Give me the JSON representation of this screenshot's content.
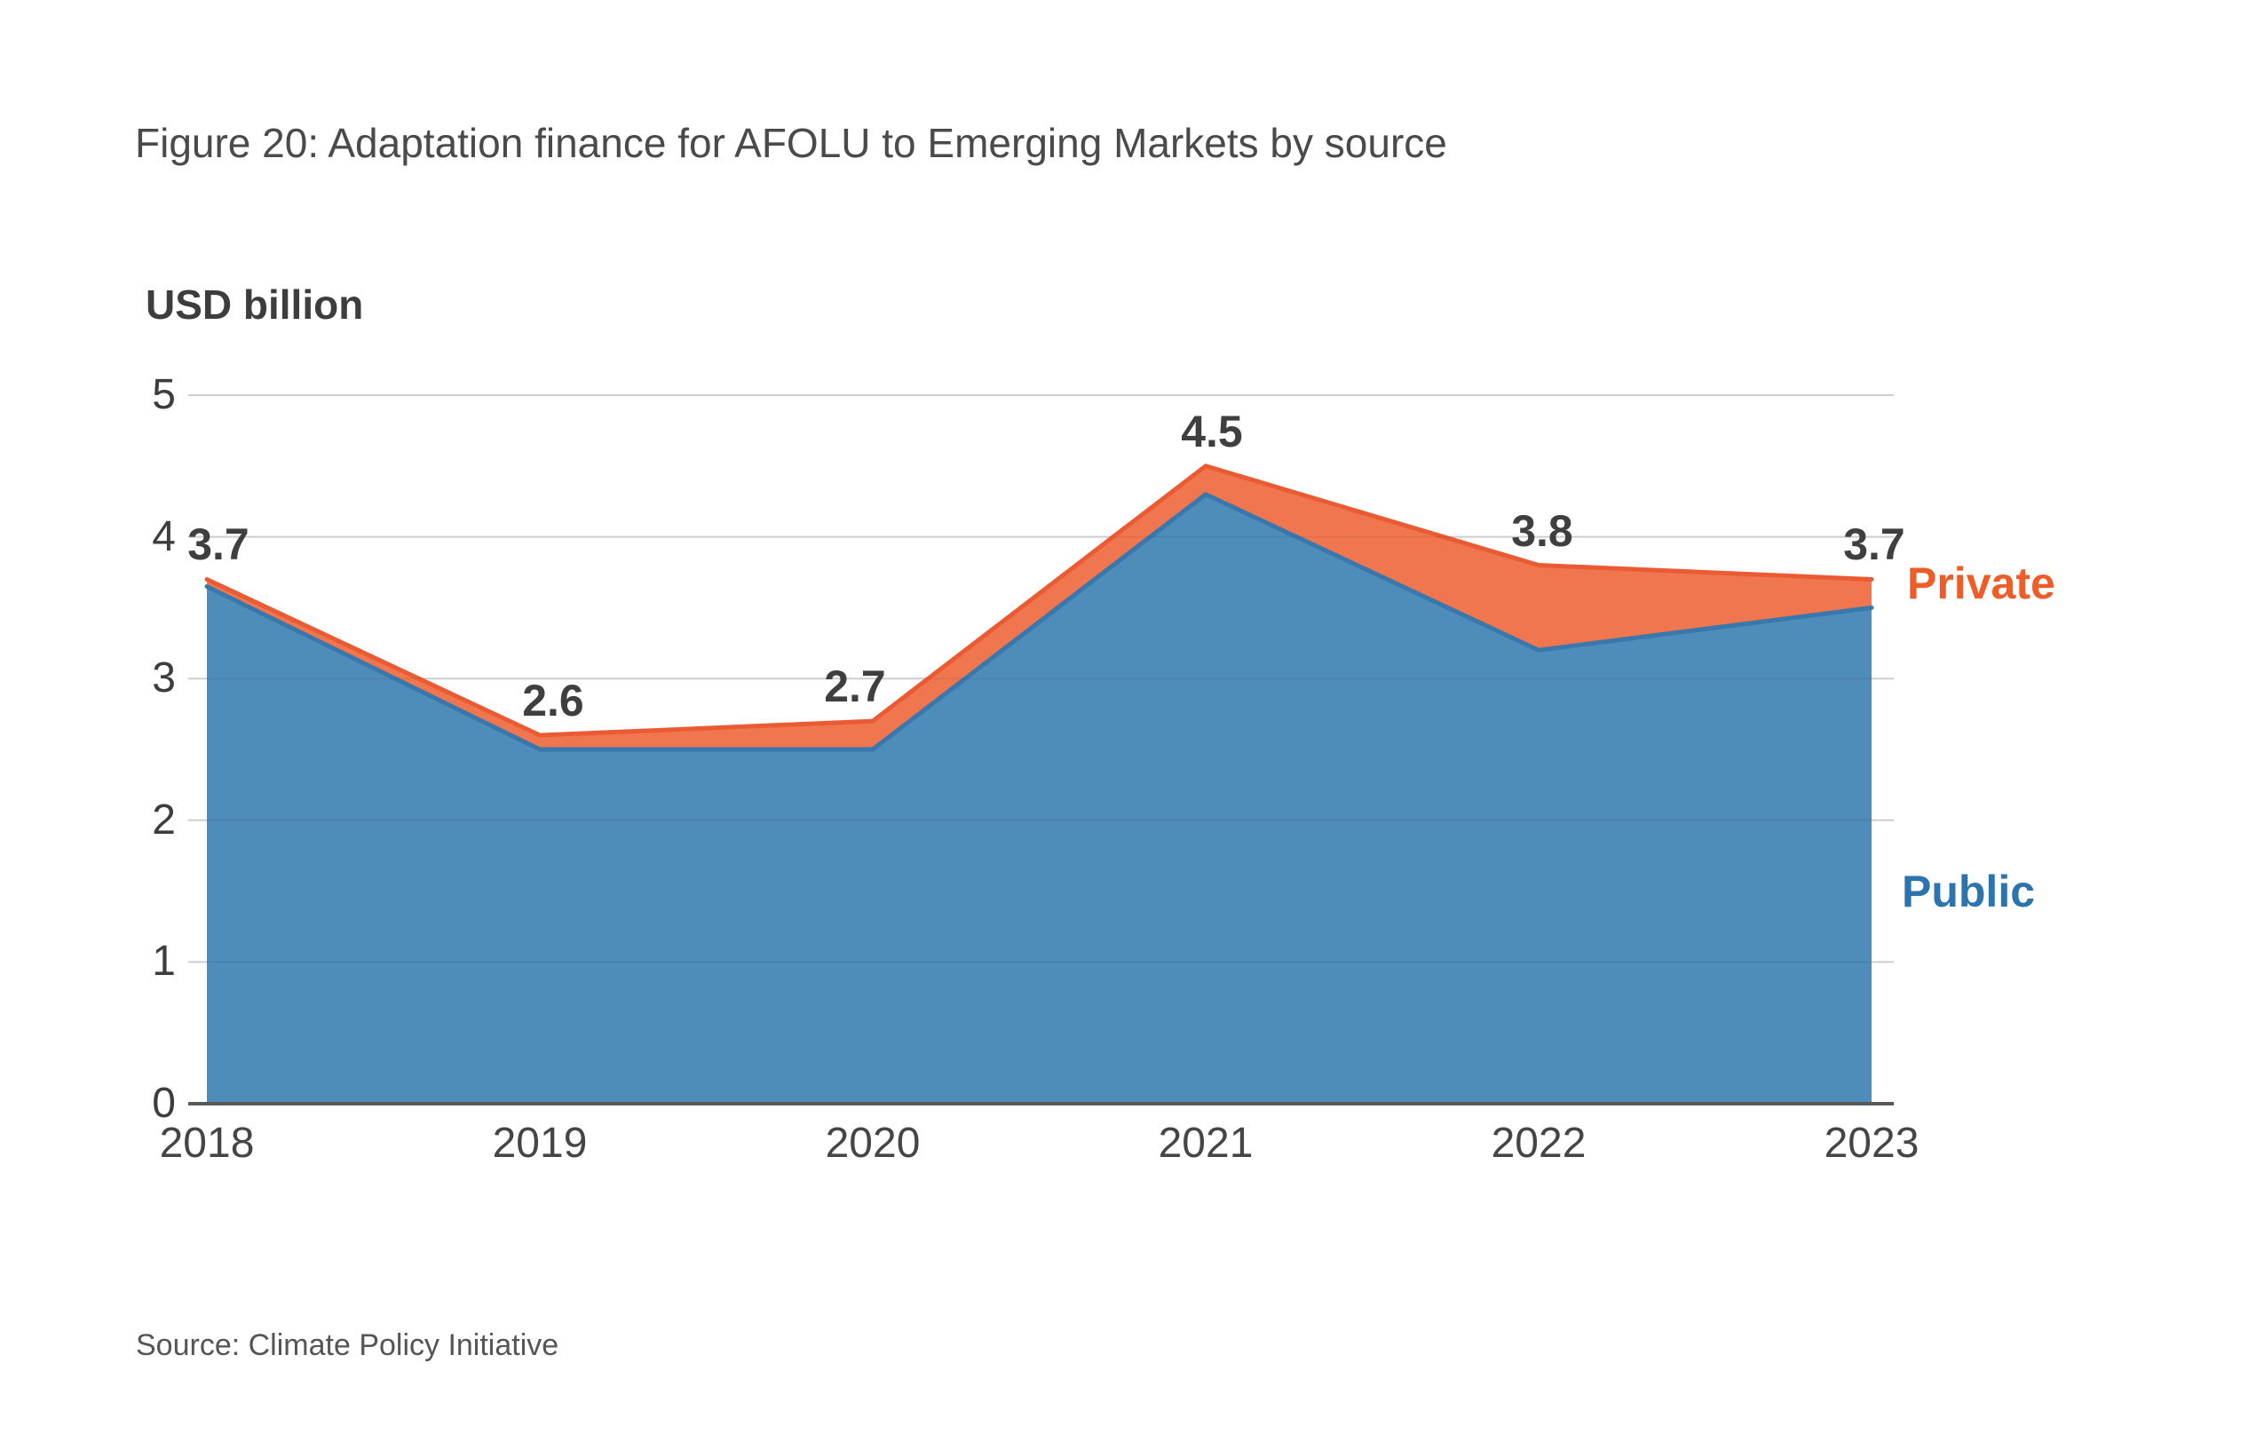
{
  "chart_data": {
    "type": "area",
    "stacked": true,
    "title": "Figure 20: Adaptation finance for AFOLU to Emerging Markets by source",
    "ylabel": "USD billion",
    "xlabel": "",
    "categories": [
      "2018",
      "2019",
      "2020",
      "2021",
      "2022",
      "2023"
    ],
    "series": [
      {
        "name": "Public",
        "values": [
          3.65,
          2.5,
          2.5,
          4.3,
          3.2,
          3.5
        ],
        "fill": "#4E8CBA",
        "stroke": "#3878AD"
      },
      {
        "name": "Private",
        "values": [
          0.05,
          0.1,
          0.2,
          0.2,
          0.6,
          0.2
        ],
        "fill": "#F0764F",
        "stroke": "#EB5B33"
      }
    ],
    "totals": [
      3.7,
      2.6,
      2.7,
      4.5,
      3.8,
      3.7
    ],
    "total_labels": [
      "3.7",
      "2.6",
      "2.7",
      "4.5",
      "3.8",
      "3.7"
    ],
    "yticks": [
      "0",
      "1",
      "2",
      "3",
      "4",
      "5"
    ],
    "ylim": [
      0,
      5
    ],
    "grid": "horizontal-light",
    "gridline_color": "#d8d8d8",
    "axis_line_color": "#595959",
    "legend_position": "right-inline",
    "legend": {
      "private_label": "Private",
      "public_label": "Public",
      "private_color": "#EE5C28",
      "public_color": "#2C74AE"
    }
  },
  "footer": {
    "source": "Source: Climate Policy Initiative"
  }
}
